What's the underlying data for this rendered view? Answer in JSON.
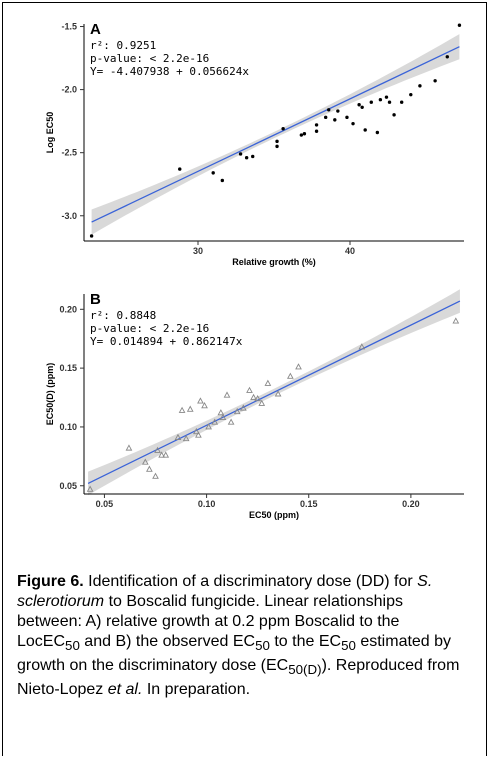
{
  "chart_data": [
    {
      "type": "scatter",
      "panel_label": "A",
      "xlabel": "Relative growth (%)",
      "ylabel": "Log EC50",
      "xlim": [
        22.5,
        47.5
      ],
      "ylim": [
        -3.2,
        -1.48
      ],
      "xticks": [
        30,
        40
      ],
      "yticks": [
        -1.5,
        -2.0,
        -2.5,
        -3.0
      ],
      "ytick_labels": [
        "-1.5",
        "-2.0",
        "-2.5",
        "-3.0"
      ],
      "stats": {
        "r2_label": "r²:",
        "r2_value": "0.9251",
        "p_value": "p-value: < 2.2e-16",
        "equation": "Y= -4.407938 + 0.056624x"
      },
      "fit_line": {
        "x": [
          23,
          47.2
        ],
        "y": [
          -3.05,
          -1.66
        ]
      },
      "ci_halfwidth": {
        "ends": 0.1,
        "center": 0.025
      },
      "points": [
        [
          23.0,
          -3.16
        ],
        [
          28.8,
          -2.63
        ],
        [
          31.0,
          -2.66
        ],
        [
          31.6,
          -2.72
        ],
        [
          32.8,
          -2.51
        ],
        [
          33.2,
          -2.54
        ],
        [
          33.6,
          -2.53
        ],
        [
          35.2,
          -2.45
        ],
        [
          35.2,
          -2.41
        ],
        [
          35.6,
          -2.31
        ],
        [
          36.8,
          -2.36
        ],
        [
          37.0,
          -2.35
        ],
        [
          37.8,
          -2.33
        ],
        [
          37.8,
          -2.28
        ],
        [
          38.4,
          -2.22
        ],
        [
          38.6,
          -2.16
        ],
        [
          39.0,
          -2.24
        ],
        [
          39.2,
          -2.17
        ],
        [
          39.8,
          -2.22
        ],
        [
          40.2,
          -2.27
        ],
        [
          40.6,
          -2.12
        ],
        [
          40.8,
          -2.14
        ],
        [
          41.0,
          -2.32
        ],
        [
          41.4,
          -2.1
        ],
        [
          41.8,
          -2.34
        ],
        [
          42.0,
          -2.08
        ],
        [
          42.4,
          -2.06
        ],
        [
          42.6,
          -2.1
        ],
        [
          42.9,
          -2.2
        ],
        [
          43.4,
          -2.1
        ],
        [
          44.0,
          -2.04
        ],
        [
          44.6,
          -1.97
        ],
        [
          45.6,
          -1.93
        ],
        [
          46.4,
          -1.74
        ],
        [
          47.2,
          -1.49
        ]
      ],
      "colors": {
        "line": "#3a63d8",
        "band": "#cfcfcf",
        "point": "#000000"
      }
    },
    {
      "type": "scatter",
      "panel_label": "B",
      "xlabel": "EC50 (ppm)",
      "ylabel": "EC50(D) (ppm)",
      "xlim": [
        0.04,
        0.226
      ],
      "ylim": [
        0.043,
        0.213
      ],
      "xticks": [
        0.05,
        0.1,
        0.15,
        0.2
      ],
      "xtick_labels": [
        "0.05",
        "0.10",
        "0.15",
        "0.20"
      ],
      "yticks": [
        0.05,
        0.1,
        0.15,
        0.2
      ],
      "ytick_labels": [
        "0.05",
        "0.10",
        "0.15",
        "0.20"
      ],
      "stats": {
        "r2_label": "r²:",
        "r2_value": "0.8848",
        "p_value": "p-value: < 2.2e-16",
        "equation": "Y= 0.014894 + 0.862147x"
      },
      "fit_line": {
        "x": [
          0.042,
          0.224
        ],
        "y": [
          0.052,
          0.207
        ]
      },
      "ci_halfwidth": {
        "ends": 0.01,
        "center": 0.003
      },
      "points": [
        [
          0.043,
          0.047
        ],
        [
          0.062,
          0.082
        ],
        [
          0.07,
          0.07
        ],
        [
          0.072,
          0.064
        ],
        [
          0.075,
          0.058
        ],
        [
          0.076,
          0.08
        ],
        [
          0.078,
          0.076
        ],
        [
          0.08,
          0.076
        ],
        [
          0.086,
          0.091
        ],
        [
          0.088,
          0.114
        ],
        [
          0.09,
          0.09
        ],
        [
          0.092,
          0.115
        ],
        [
          0.095,
          0.096
        ],
        [
          0.096,
          0.093
        ],
        [
          0.097,
          0.122
        ],
        [
          0.099,
          0.118
        ],
        [
          0.101,
          0.1
        ],
        [
          0.104,
          0.104
        ],
        [
          0.107,
          0.112
        ],
        [
          0.108,
          0.108
        ],
        [
          0.11,
          0.127
        ],
        [
          0.112,
          0.104
        ],
        [
          0.115,
          0.113
        ],
        [
          0.118,
          0.116
        ],
        [
          0.121,
          0.131
        ],
        [
          0.123,
          0.125
        ],
        [
          0.125,
          0.124
        ],
        [
          0.127,
          0.12
        ],
        [
          0.13,
          0.137
        ],
        [
          0.135,
          0.128
        ],
        [
          0.141,
          0.143
        ],
        [
          0.145,
          0.151
        ],
        [
          0.176,
          0.168
        ],
        [
          0.222,
          0.19
        ]
      ],
      "colors": {
        "line": "#3a63d8",
        "band": "#cfcfcf",
        "point": "#888888"
      }
    }
  ],
  "caption": {
    "label": "Figure 6.",
    "seg1": " Identification of a discriminatory dose (DD) for ",
    "species": "S. sclerotiorum",
    "seg2": " to Boscalid fungicide. Linear relationships between: A) relative growth at 0.2 ppm Boscalid to the LocEC",
    "sub1": "50",
    "seg3": " and B) the observed EC",
    "sub2": "50",
    "seg4": " to the EC",
    "sub3": "50",
    "seg5": " estimated by growth on the discriminatory dose (EC",
    "sub4": "50(D)",
    "seg6": "). Reproduced from Nieto-Lopez ",
    "etal": "et al.",
    "seg7": " In preparation."
  }
}
